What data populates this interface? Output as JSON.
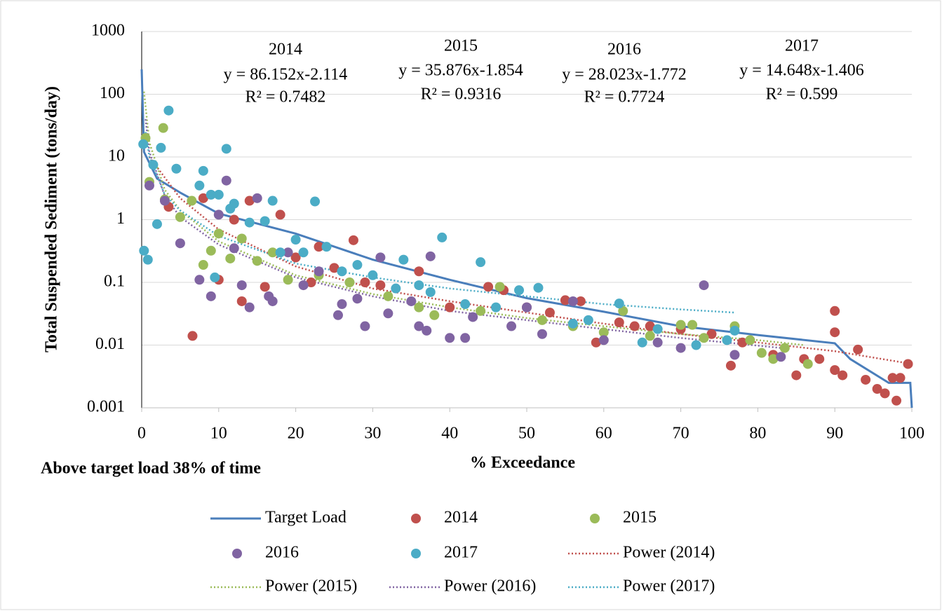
{
  "chart_data": {
    "type": "scatter",
    "y_label": "Total Suspended Sediment (tons/day)",
    "x_label": "% Exceedance",
    "note": "Above target load 38% of time",
    "ylog": true,
    "grid": true,
    "xlim": [
      0,
      100
    ],
    "xticks": [
      0,
      10,
      20,
      30,
      40,
      50,
      60,
      70,
      80,
      90,
      100
    ],
    "ylim": [
      0.001,
      1000
    ],
    "yticks": [
      0.001,
      0.01,
      0.1,
      1,
      10,
      100,
      1000
    ],
    "annotations": [
      {
        "year": "2014",
        "equation": "y = 86.152x-2.114",
        "r2": "R² = 0.7482"
      },
      {
        "year": "2015",
        "equation": "y = 35.876x-1.854",
        "r2": "R² = 0.9316"
      },
      {
        "year": "2016",
        "equation": "y = 28.023x-1.772",
        "r2": "R² = 0.7724"
      },
      {
        "year": "2017",
        "equation": "y = 14.648x-1.406",
        "r2": "R² = 0.599"
      }
    ],
    "series": [
      {
        "name": "Target Load",
        "color": "#4a7ebb",
        "style": "line",
        "x": [
          0,
          0.3,
          2,
          5,
          10,
          20,
          30,
          40,
          50,
          60,
          70,
          80,
          90,
          92,
          97,
          99.8,
          100
        ],
        "values": [
          250,
          12,
          4.5,
          2.7,
          1.25,
          0.6,
          0.23,
          0.11,
          0.056,
          0.034,
          0.02,
          0.0145,
          0.0107,
          0.006,
          0.0025,
          0.0025,
          0.001
        ]
      },
      {
        "name": "2014",
        "color": "#c0504d",
        "style": "marker",
        "x": [
          6.6,
          3.5,
          8,
          10,
          12,
          13,
          14,
          16,
          18,
          20,
          22,
          23,
          25,
          27.5,
          29,
          31,
          36,
          40,
          45,
          47,
          50,
          53,
          55,
          57,
          59,
          62,
          64,
          66,
          70,
          74,
          76.5,
          78,
          82,
          85,
          86,
          88,
          90,
          90,
          90,
          91,
          93,
          94,
          95.5,
          96.5,
          97.5,
          98,
          98.5,
          99.5
        ],
        "values": [
          0.014,
          1.6,
          2.2,
          0.11,
          1.0,
          0.05,
          2.0,
          0.085,
          1.2,
          0.25,
          0.1,
          0.37,
          0.17,
          0.47,
          0.1,
          0.09,
          0.15,
          0.04,
          0.085,
          0.075,
          0.04,
          0.033,
          0.052,
          0.05,
          0.011,
          0.023,
          0.02,
          0.02,
          0.018,
          0.015,
          0.0047,
          0.011,
          0.007,
          0.0033,
          0.006,
          0.006,
          0.035,
          0.016,
          0.004,
          0.0033,
          0.0085,
          0.0028,
          0.002,
          0.0017,
          0.003,
          0.0013,
          0.003,
          0.005
        ]
      },
      {
        "name": "2015",
        "color": "#9bbb59",
        "style": "marker",
        "x": [
          0.5,
          2.8,
          1,
          3,
          5,
          6.5,
          8,
          9,
          10,
          11.5,
          13,
          15,
          17,
          19,
          23,
          27,
          32,
          36,
          38,
          44,
          46.5,
          52,
          56,
          60,
          62.5,
          66,
          70,
          71.5,
          73,
          77,
          79,
          80.5,
          82,
          83.5,
          86.5
        ],
        "values": [
          20,
          29,
          4,
          2.1,
          1.1,
          2,
          0.19,
          0.32,
          0.6,
          0.24,
          0.5,
          0.22,
          0.3,
          0.11,
          0.13,
          0.1,
          0.06,
          0.04,
          0.03,
          0.035,
          0.085,
          0.025,
          0.02,
          0.016,
          0.035,
          0.014,
          0.021,
          0.021,
          0.013,
          0.02,
          0.012,
          0.0075,
          0.006,
          0.009,
          0.005
        ]
      },
      {
        "name": "2016",
        "color": "#8064a2",
        "style": "marker",
        "x": [
          1,
          3,
          5,
          7.5,
          9,
          10,
          11,
          12,
          13,
          14,
          15,
          16.5,
          17,
          19,
          21,
          23,
          25.5,
          26,
          28,
          29,
          31,
          32,
          35,
          36,
          37,
          37.5,
          40,
          42,
          43,
          48,
          50,
          52,
          56,
          60,
          67,
          70,
          73,
          77,
          83
        ],
        "values": [
          3.5,
          2,
          0.42,
          0.11,
          0.06,
          1.2,
          4.2,
          0.35,
          0.09,
          0.04,
          2.2,
          0.06,
          0.05,
          0.3,
          0.09,
          0.15,
          0.03,
          0.045,
          0.055,
          0.02,
          0.25,
          0.032,
          0.05,
          0.02,
          0.017,
          0.26,
          0.013,
          0.013,
          0.028,
          0.02,
          0.04,
          0.015,
          0.05,
          0.012,
          0.011,
          0.009,
          0.09,
          0.007,
          0.0065
        ]
      },
      {
        "name": "2017",
        "color": "#4bacc6",
        "style": "marker",
        "x": [
          0.2,
          0.3,
          0.8,
          1.5,
          2,
          2.5,
          3.5,
          4.5,
          7.5,
          8,
          9,
          9.5,
          10,
          11,
          11.5,
          12,
          14,
          16,
          17,
          18,
          20,
          21,
          22.5,
          24,
          26,
          28,
          30,
          33,
          34,
          36,
          37.5,
          39,
          42,
          44,
          46,
          49,
          51.5,
          56,
          58,
          62,
          65,
          67,
          72,
          76,
          77
        ],
        "values": [
          16,
          0.32,
          0.23,
          7.5,
          0.85,
          14,
          55,
          6.5,
          3.5,
          6,
          2.5,
          0.12,
          2.5,
          13.5,
          1.5,
          1.8,
          0.9,
          0.95,
          2,
          0.3,
          0.48,
          0.3,
          1.95,
          0.37,
          0.15,
          0.19,
          0.13,
          0.08,
          0.23,
          0.09,
          0.07,
          0.52,
          0.045,
          0.21,
          0.04,
          0.075,
          0.082,
          0.022,
          0.025,
          0.046,
          0.011,
          0.018,
          0.01,
          0.012,
          0.017
        ]
      },
      {
        "name": "Power (2014)",
        "color": "#c0504d",
        "style": "dotted",
        "x": [
          1,
          5,
          10,
          20,
          30,
          40,
          50,
          60,
          70,
          80,
          90,
          100
        ],
        "values": [
          10,
          2.2,
          0.7,
          0.18,
          0.08,
          0.05,
          0.033,
          0.022,
          0.015,
          0.011,
          0.008,
          0.005
        ]
      },
      {
        "name": "Power (2015)",
        "color": "#9bbb59",
        "style": "dotted",
        "x": [
          0.3,
          1,
          3,
          5,
          10,
          20,
          30,
          40,
          50,
          60,
          70,
          80,
          86
        ],
        "values": [
          110,
          17,
          3,
          1.4,
          0.45,
          0.13,
          0.065,
          0.04,
          0.027,
          0.02,
          0.015,
          0.012,
          0.01
        ]
      },
      {
        "name": "Power (2016)",
        "color": "#8064a2",
        "style": "dotted",
        "x": [
          0.5,
          1,
          3,
          5,
          10,
          20,
          30,
          40,
          50,
          60,
          70,
          83
        ],
        "values": [
          40,
          12,
          2.4,
          1.1,
          0.4,
          0.12,
          0.06,
          0.035,
          0.025,
          0.018,
          0.013,
          0.009
        ]
      },
      {
        "name": "Power (2017)",
        "color": "#4bacc6",
        "style": "dotted",
        "x": [
          0.5,
          1,
          3,
          5,
          10,
          20,
          30,
          40,
          50,
          60,
          70,
          77
        ],
        "values": [
          25,
          10,
          2.5,
          1.4,
          0.55,
          0.2,
          0.12,
          0.08,
          0.06,
          0.045,
          0.037,
          0.033
        ]
      }
    ]
  }
}
